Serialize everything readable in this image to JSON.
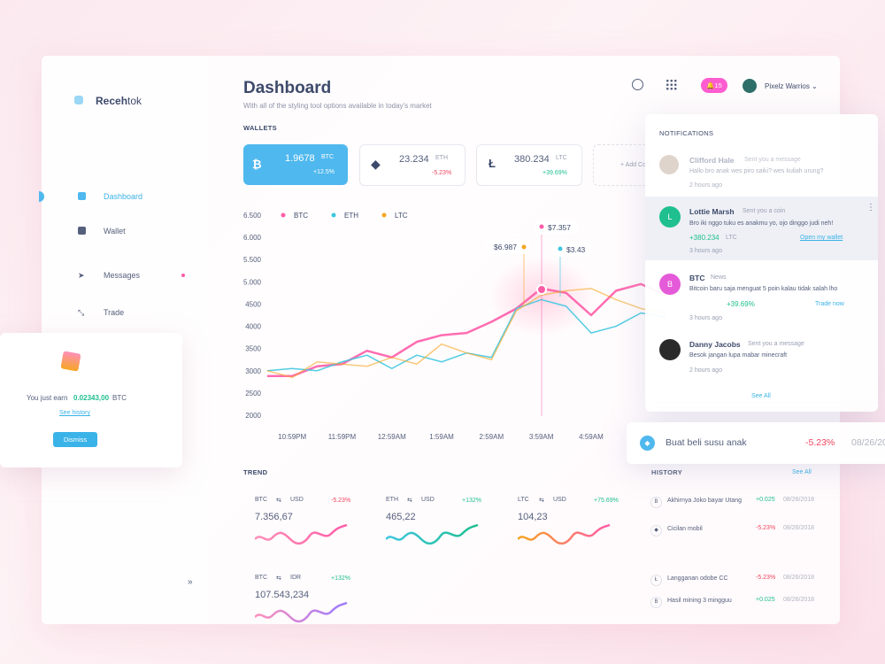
{
  "brand": {
    "bold": "Receh",
    "light": "tok"
  },
  "sidebar": {
    "items": [
      "Dashboard",
      "Wallet",
      "Messages",
      "Trade"
    ]
  },
  "earn_card": {
    "text": "You just earn",
    "amount": "0.02343,00",
    "unit": "BTC",
    "link": "See history",
    "button": "Dismiss"
  },
  "header": {
    "title": "Dashboard",
    "subtitle": "With all of the styling tool options available in today's market",
    "badge": "15",
    "user": "Pixelz Warrios"
  },
  "wallets": {
    "label": "WALLETS",
    "items": [
      {
        "amount": "1.9678",
        "unit": "BTC",
        "change": "+12.5%"
      },
      {
        "amount": "23.234",
        "unit": "ETH",
        "change": "-5.23%"
      },
      {
        "amount": "380.234",
        "unit": "LTC",
        "change": "+39.69%"
      }
    ],
    "add": "+ Add Coin"
  },
  "chart_data": {
    "type": "line",
    "categories": [
      null,
      "10:59PM",
      null,
      "11:59PM",
      null,
      "12:59AM",
      null,
      "1:59AM",
      null,
      "2:59AM",
      null,
      "3:59AM",
      null,
      "4:59AM",
      null,
      null,
      null
    ],
    "series": [
      {
        "name": "BTC",
        "color": "#ff5ca8",
        "values": [
          2880,
          2880,
          3100,
          3150,
          3450,
          3300,
          3650,
          3800,
          3850,
          4100,
          4400,
          4850,
          4750,
          4250,
          4800,
          4950,
          4700
        ]
      },
      {
        "name": "ETH",
        "color": "#3ec6e0",
        "values": [
          3000,
          3050,
          3000,
          3200,
          3350,
          3050,
          3350,
          3200,
          3400,
          3300,
          4400,
          4600,
          4450,
          3850,
          4000,
          4300,
          4200
        ]
      },
      {
        "name": "LTC",
        "color": "#f5a623",
        "values": [
          3000,
          2850,
          3200,
          3150,
          3100,
          3300,
          3150,
          3600,
          3400,
          3250,
          4350,
          4700,
          4800,
          4850,
          4600,
          4400,
          4300
        ]
      }
    ],
    "ylim": [
      2000,
      6500
    ],
    "yticks": [
      {
        "value": 6500,
        "label": "6.500"
      },
      {
        "value": 6000,
        "label": "6.000"
      },
      {
        "value": 5500,
        "label": "5.500"
      },
      {
        "value": 5000,
        "label": "5.000"
      },
      4500,
      4000,
      3500,
      3000,
      2500,
      2000
    ],
    "grid": false,
    "annotations": [
      "$6.987",
      "$7.357",
      "$3.43"
    ]
  },
  "notifications": {
    "title": "NOTIFICATIONS",
    "see_all": "See All",
    "items": [
      {
        "name": "Clifford Hale",
        "action": "Sent you a message",
        "text": "Hallo bro anak wes piro saiki? wes kuliah urung?",
        "time": "2 hours ago"
      },
      {
        "initial": "L",
        "name": "Lottie Marsh",
        "action": "Sent you a coin",
        "text": "Bro iki nggo tuku es anakmu yo, ojo dinggo judi neh!",
        "amount": "+380.234",
        "unit": "LTC",
        "link": "Open my wallet",
        "time": "3 hours ago"
      },
      {
        "initial": "B",
        "name": "BTC",
        "action": "News",
        "text": "Bitcoin baru saja menguat 5 poin kalau tidak salah lho",
        "change": "+39.69%",
        "link": "Trade now",
        "time": "3 hours ago"
      },
      {
        "name": "Danny Jacobs",
        "action": "Sent you a message",
        "text": "Besok jangan lupa mabar minecraft",
        "time": "2 hours ago"
      }
    ]
  },
  "toast": {
    "text": "Buat beli susu anak",
    "change": "-5.23%",
    "date": "08/26/2018"
  },
  "trend": {
    "label": "TREND",
    "items": [
      {
        "from": "BTC",
        "to": "USD",
        "change": "-5.23%",
        "value": "7.356,67"
      },
      {
        "from": "ETH",
        "to": "USD",
        "change": "+132%",
        "value": "465,22"
      },
      {
        "from": "LTC",
        "to": "USD",
        "change": "+75.69%",
        "value": "104,23"
      },
      {
        "from": "BTC",
        "to": "IDR",
        "change": "+132%",
        "value": "107.543,234"
      }
    ]
  },
  "history": {
    "label": "HISTORY",
    "see_all": "See All",
    "rows": [
      {
        "text": "Akhirnya Joko bayar Utang",
        "amount": "+0.025",
        "date": "08/26/2018"
      },
      {
        "text": "Cicilan mobil",
        "amount": "-5.23%",
        "date": "08/26/2018"
      },
      {
        "text": "Langganan odobe CC",
        "amount": "-5.23%",
        "date": "08/26/2018"
      },
      {
        "text": "Hasil mining 3 mingguu",
        "amount": "+0.025",
        "date": "08/26/2018"
      }
    ]
  }
}
